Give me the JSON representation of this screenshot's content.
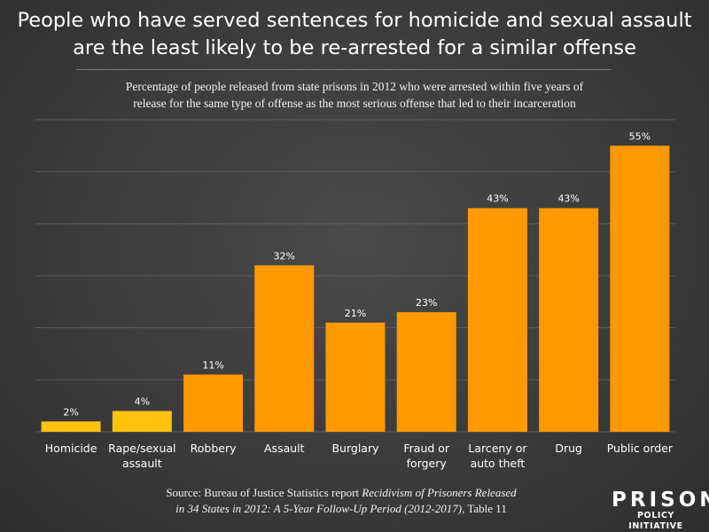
{
  "title": {
    "line1": "People who have served sentences for homicide and sexual assault",
    "line2": "are the least likely to be re-arrested for a similar offense"
  },
  "subtitle": {
    "line1": "Percentage of people released from state prisons in 2012 who were arrested within five years of",
    "line2": "release for the same type of offense as the most serious offense that led to their incarceration"
  },
  "chart_data": {
    "type": "bar",
    "categories": [
      "Homicide",
      "Rape/sexual assault",
      "Robbery",
      "Assault",
      "Burglary",
      "Fraud or forgery",
      "Larceny or auto theft",
      "Drug",
      "Public order"
    ],
    "category_lines": [
      [
        "Homicide"
      ],
      [
        "Rape/sexual",
        "assault"
      ],
      [
        "Robbery"
      ],
      [
        "Assault"
      ],
      [
        "Burglary"
      ],
      [
        "Fraud or",
        "forgery"
      ],
      [
        "Larceny or",
        "auto theft"
      ],
      [
        "Drug"
      ],
      [
        "Public order"
      ]
    ],
    "values": [
      2,
      4,
      11,
      32,
      21,
      23,
      43,
      43,
      55
    ],
    "data_labels": [
      "2%",
      "4%",
      "11%",
      "32%",
      "21%",
      "23%",
      "43%",
      "43%",
      "55%"
    ],
    "highlight_color": "#FFC20E",
    "bar_color": "#FF9900",
    "highlighted_categories": [
      "Homicide",
      "Rape/sexual assault"
    ],
    "ylim": [
      0,
      60
    ],
    "grid": true,
    "gridline_step": 10,
    "xlabel": "",
    "ylabel": ""
  },
  "source": {
    "prefix": "Source: Bureau of Justice Statistics report ",
    "italic_line1": "Recidivism of Prisoners Released",
    "italic_line2": "in 34 States in 2012: A 5-Year Follow-Up Period (2012-2017)",
    "suffix": ", Table 11"
  },
  "logo": {
    "top": "PRISON",
    "bottom": "POLICY INITIATIVE"
  },
  "colors": {
    "background": "#3a3a3a",
    "gridline": "#5c5c5c",
    "text": "#ffffff"
  }
}
